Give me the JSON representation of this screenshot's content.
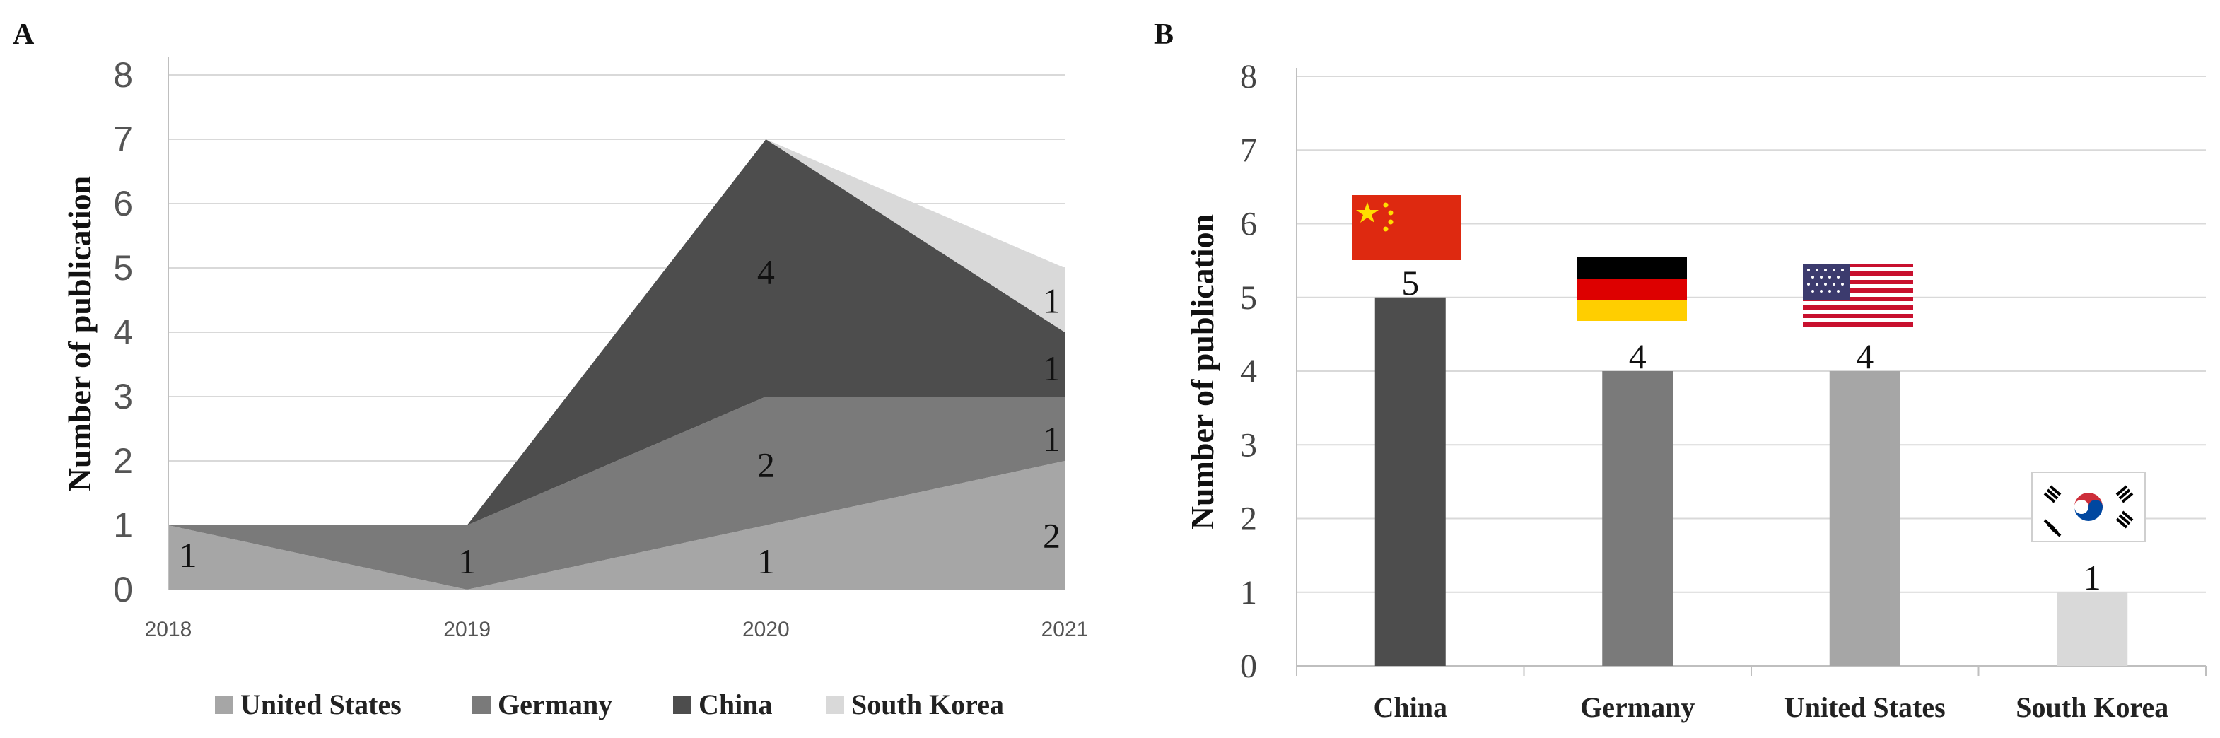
{
  "chart_data": [
    {
      "panel": "A",
      "type": "area",
      "stacked": true,
      "ylabel": "Number of publication",
      "xlabel": "",
      "ylim": [
        0,
        8
      ],
      "yticks": [
        "0",
        "1",
        "2",
        "3",
        "4",
        "5",
        "6",
        "7",
        "8"
      ],
      "x": [
        "2018",
        "2019",
        "2020",
        "2021"
      ],
      "series": [
        {
          "name": "United States",
          "color": "#a6a6a6",
          "values": [
            1,
            0,
            1,
            2
          ]
        },
        {
          "name": "Germany",
          "color": "#7a7a7a",
          "values": [
            0,
            1,
            2,
            1
          ]
        },
        {
          "name": "China",
          "color": "#4d4d4d",
          "values": [
            0,
            0,
            4,
            1
          ]
        },
        {
          "name": "South Korea",
          "color": "#d9d9d9",
          "values": [
            0,
            0,
            0,
            1
          ]
        }
      ],
      "data_labels": [
        {
          "text": "1",
          "x": "2018",
          "y": 0.55
        },
        {
          "text": "1",
          "x": "2019",
          "y": 0.45
        },
        {
          "text": "1",
          "x": "2020",
          "y": 0.45
        },
        {
          "text": "2",
          "x": "2020",
          "y": 1.95
        },
        {
          "text": "4",
          "x": "2020",
          "y": 4.95
        },
        {
          "text": "2",
          "x": "2021",
          "y": 0.85
        },
        {
          "text": "1",
          "x": "2021",
          "y": 2.35
        },
        {
          "text": "1",
          "x": "2021",
          "y": 3.45
        },
        {
          "text": "1",
          "x": "2021",
          "y": 4.5
        }
      ],
      "legend_position": "bottom"
    },
    {
      "panel": "B",
      "type": "bar",
      "ylabel": "Number of publication",
      "xlabel": "",
      "ylim": [
        0,
        8
      ],
      "yticks": [
        "0",
        "1",
        "2",
        "3",
        "4",
        "5",
        "6",
        "7",
        "8"
      ],
      "categories": [
        "China",
        "Germany",
        "United States",
        "South Korea"
      ],
      "values": [
        5,
        4,
        4,
        1
      ],
      "value_labels": [
        "5",
        "4",
        "4",
        "1"
      ],
      "colors": [
        "#4d4d4d",
        "#7a7a7a",
        "#a6a6a6",
        "#d9d9d9"
      ],
      "flags": [
        "china-flag",
        "germany-flag",
        "usa-flag",
        "south-korea-flag"
      ]
    }
  ],
  "panel_labels": [
    "A",
    "B"
  ]
}
